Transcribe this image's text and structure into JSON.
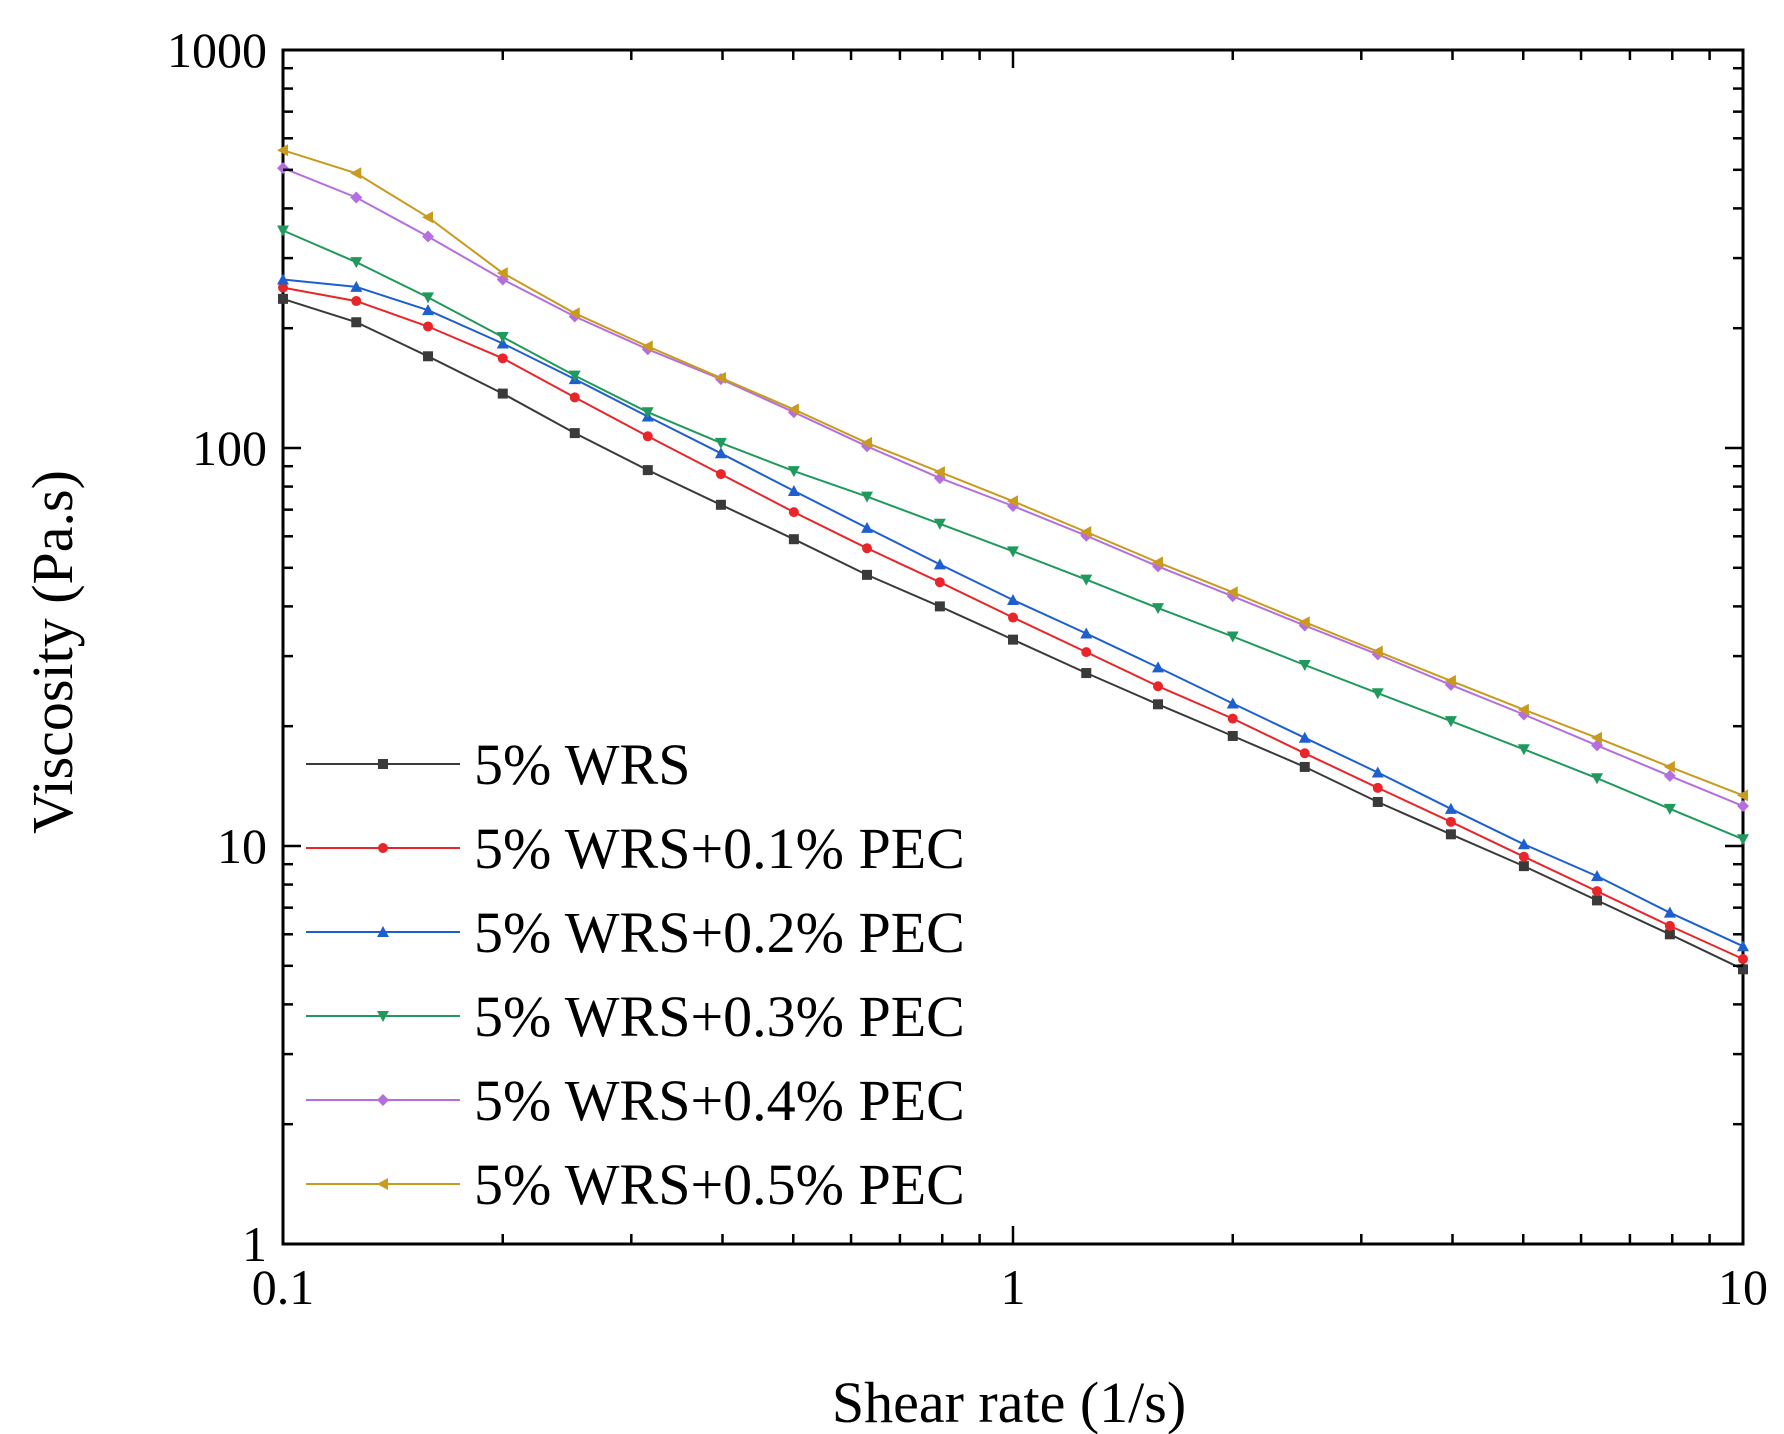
{
  "chart_data": {
    "type": "line",
    "title": "",
    "xlabel": "Shear rate (1/s)",
    "ylabel": "Viscosity (Pa.s)",
    "xscale": "log",
    "yscale": "log",
    "xlim": [
      0.1,
      10
    ],
    "ylim": [
      1,
      1000
    ],
    "xticks": [
      {
        "value": 0.1,
        "label": "0.1"
      },
      {
        "value": 1,
        "label": "1"
      },
      {
        "value": 10,
        "label": "10"
      }
    ],
    "yticks": [
      {
        "value": 1,
        "label": "1"
      },
      {
        "value": 10,
        "label": "10"
      },
      {
        "value": 100,
        "label": "100"
      },
      {
        "value": 1000,
        "label": "1000"
      }
    ],
    "legend_position": "bottom-left",
    "x": [
      0.1,
      0.126,
      0.158,
      0.2,
      0.251,
      0.316,
      0.398,
      0.501,
      0.631,
      0.794,
      1.0,
      1.26,
      1.58,
      2.0,
      2.51,
      3.16,
      3.98,
      5.01,
      6.31,
      7.94,
      10.0
    ],
    "series": [
      {
        "name": "5% WRS",
        "color": "#3a3a3a",
        "marker": "square",
        "values": [
          237,
          207,
          170,
          137,
          109,
          88,
          72,
          59,
          48,
          40,
          33,
          27.2,
          22.7,
          18.9,
          15.8,
          12.9,
          10.7,
          8.9,
          7.3,
          6.0,
          4.9
        ]
      },
      {
        "name": "5% WRS+0.1% PEC",
        "color": "#e8262a",
        "marker": "circle",
        "values": [
          253,
          234,
          202,
          168,
          134,
          107,
          86,
          69,
          56,
          46,
          37.5,
          30.7,
          25.2,
          20.9,
          17.1,
          14.0,
          11.5,
          9.4,
          7.7,
          6.3,
          5.2
        ]
      },
      {
        "name": "5% WRS+0.2% PEC",
        "color": "#1e5fd0",
        "marker": "triangle-up",
        "values": [
          265,
          254,
          222,
          183,
          149,
          120,
          97,
          78,
          63,
          51,
          41.5,
          34.2,
          28.1,
          22.8,
          18.7,
          15.3,
          12.4,
          10.1,
          8.4,
          6.8,
          5.6
        ]
      },
      {
        "name": "5% WRS+0.3% PEC",
        "color": "#1f9a5c",
        "marker": "triangle-down",
        "values": [
          352,
          293,
          239,
          190,
          152,
          123,
          103,
          87.5,
          75.5,
          64.5,
          55,
          46.7,
          39.6,
          33.6,
          28.5,
          24.2,
          20.6,
          17.5,
          14.8,
          12.4,
          10.4
        ]
      },
      {
        "name": "5% WRS+0.4% PEC",
        "color": "#b46ee0",
        "marker": "diamond",
        "values": [
          505,
          426,
          340,
          265,
          214,
          177,
          149,
          123,
          101,
          84,
          71.5,
          60.2,
          50.4,
          42.4,
          35.8,
          30.3,
          25.4,
          21.4,
          17.9,
          15.0,
          12.6
        ]
      },
      {
        "name": "5% WRS+0.5% PEC",
        "color": "#c99a1e",
        "marker": "triangle-left",
        "values": [
          560,
          490,
          380,
          275,
          218,
          180,
          150,
          125,
          103,
          87,
          73.5,
          61.5,
          51.6,
          43.4,
          36.5,
          30.8,
          26.0,
          22.0,
          18.7,
          15.8,
          13.4
        ]
      }
    ]
  }
}
